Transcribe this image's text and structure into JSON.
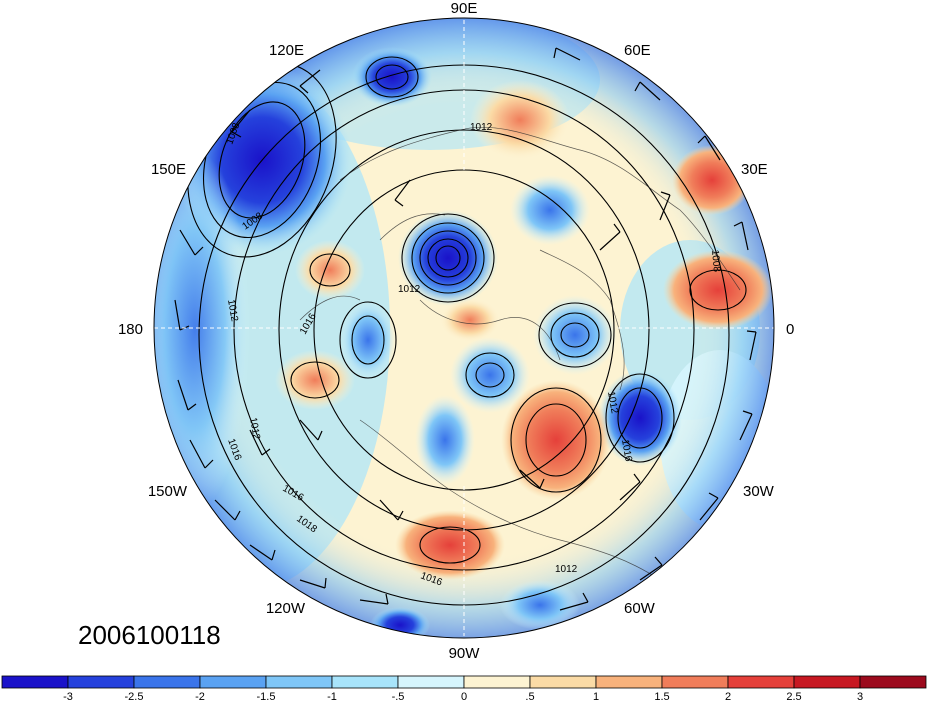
{
  "map": {
    "projection": "north-polar-stereographic",
    "timestamp": "2006100118",
    "longitude_labels": [
      {
        "label": "90E"
      },
      {
        "label": "60E"
      },
      {
        "label": "30E"
      },
      {
        "label": "0"
      },
      {
        "label": "30W"
      },
      {
        "label": "60W"
      },
      {
        "label": "90W"
      },
      {
        "label": "120W"
      },
      {
        "label": "150W"
      },
      {
        "label": "180"
      },
      {
        "label": "150E"
      },
      {
        "label": "120E"
      }
    ],
    "isobar_labels": [
      "1012",
      "1008",
      "1008",
      "1012",
      "1012",
      "1016",
      "1012",
      "1016",
      "1016",
      "1016",
      "1018",
      "1016",
      "1012",
      "1012",
      "1008"
    ],
    "anomaly_centers": [
      {
        "sign": "neg",
        "strength": 3,
        "region": "northeast-asia"
      },
      {
        "sign": "neg",
        "strength": 3,
        "region": "arctic-siberia"
      },
      {
        "sign": "neg",
        "strength": 2.5,
        "region": "north-atlantic"
      },
      {
        "sign": "neg",
        "strength": 2,
        "region": "hudson-bay"
      },
      {
        "sign": "pos",
        "strength": 2,
        "region": "northern-europe"
      },
      {
        "sign": "pos",
        "strength": 1.5,
        "region": "greenland-east"
      },
      {
        "sign": "pos",
        "strength": 1.5,
        "region": "north-pacific"
      },
      {
        "sign": "neg",
        "strength": 2.5,
        "region": "south-pacific-edge"
      }
    ]
  },
  "colorbar": {
    "ticks": [
      "-3",
      "-2.5",
      "-2",
      "-1.5",
      "-1",
      "-.5",
      "0",
      ".5",
      "1",
      "1.5",
      "2",
      "2.5",
      "3"
    ],
    "colors": [
      "#1a12c9",
      "#2541dc",
      "#3a74ea",
      "#5aa2f2",
      "#7fc6f7",
      "#a8e4fb",
      "#d6f5fd",
      "#fdf3d2",
      "#fbdba6",
      "#f8b27c",
      "#f07d5a",
      "#e5403a",
      "#c71822",
      "#9c0a1d"
    ]
  }
}
